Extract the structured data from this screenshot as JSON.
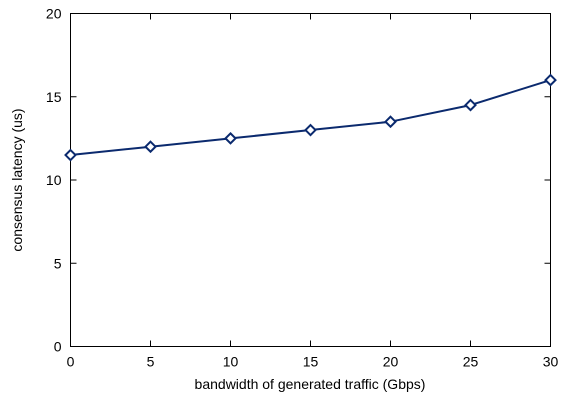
{
  "chart_data": {
    "type": "line",
    "title": "",
    "xlabel": "bandwidth of generated traffic (Gbps)",
    "ylabel": "consensus latency (us)",
    "xlim": [
      0,
      30
    ],
    "ylim": [
      0,
      20
    ],
    "xticks": [
      0,
      5,
      10,
      15,
      20,
      25,
      30
    ],
    "yticks": [
      0,
      5,
      10,
      15,
      20
    ],
    "grid": false,
    "legend": "none",
    "series": [
      {
        "color": "#0b2a6e",
        "marker": "diamond",
        "x": [
          0,
          5,
          10,
          15,
          20,
          25,
          30
        ],
        "y": [
          11.5,
          12.0,
          12.5,
          13.0,
          13.5,
          14.5,
          16.0
        ]
      }
    ]
  }
}
